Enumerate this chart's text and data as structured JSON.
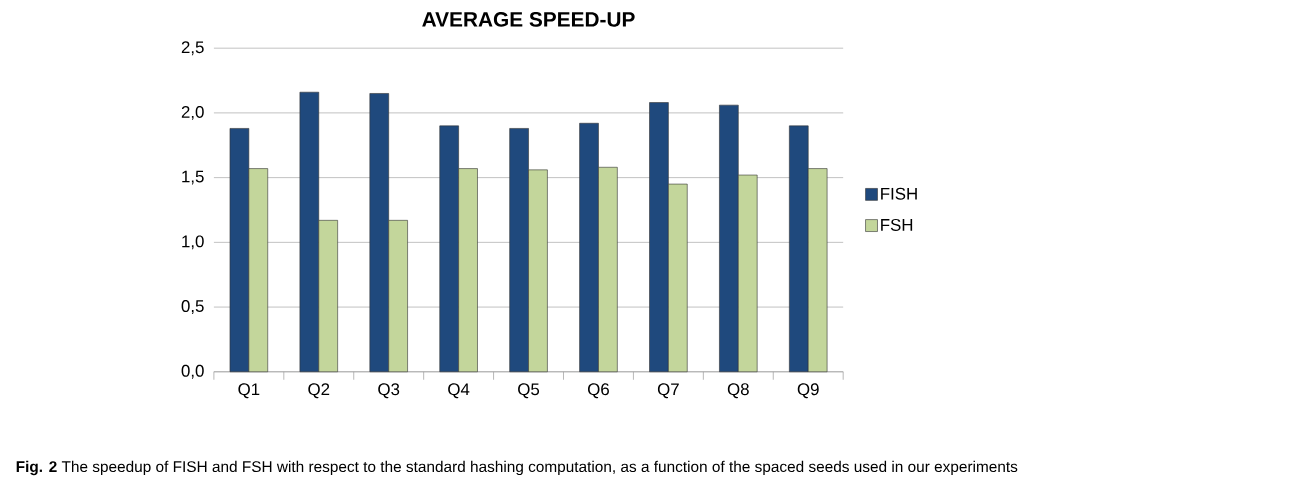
{
  "chart_data": {
    "type": "bar",
    "title": "AVERAGE SPEED-UP",
    "categories": [
      "Q1",
      "Q2",
      "Q3",
      "Q4",
      "Q5",
      "Q6",
      "Q7",
      "Q8",
      "Q9"
    ],
    "series": [
      {
        "name": "FISH",
        "color": "#1f497d",
        "values": [
          1.88,
          2.16,
          2.15,
          1.9,
          1.88,
          1.92,
          2.08,
          2.06,
          1.9
        ]
      },
      {
        "name": "FSH",
        "color": "#c3d69b",
        "values": [
          1.57,
          1.17,
          1.17,
          1.57,
          1.56,
          1.58,
          1.45,
          1.52,
          1.57
        ]
      }
    ],
    "ylim": [
      0,
      2.5
    ],
    "yticks": [
      {
        "value": 0,
        "label": "0,0"
      },
      {
        "value": 0.5,
        "label": "0,5"
      },
      {
        "value": 1,
        "label": "1,0"
      },
      {
        "value": 1.5,
        "label": "1,5"
      },
      {
        "value": 2,
        "label": "2,0"
      },
      {
        "value": 2.5,
        "label": "2,5"
      }
    ],
    "grid": "y",
    "legend": "right",
    "annotations": [
      "**Fig. 2** The speedup of FISH and FSH with respect to the standard hashing computation, as a function of the spaced seeds used in our experiments"
    ]
  }
}
